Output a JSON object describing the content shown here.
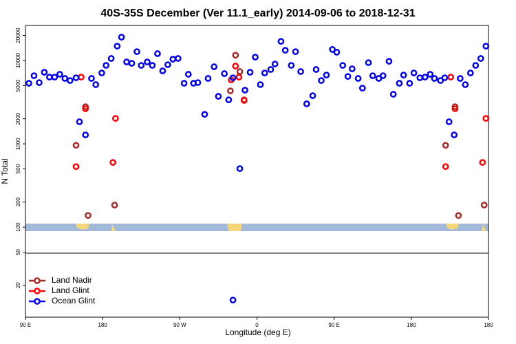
{
  "chart_data": {
    "type": "scatter",
    "title": "40S-35S December (Ver 11.1_early)   2014-09-06 to 2018-12-31",
    "x_label": "Longitude (deg E)",
    "y_label": "N Total",
    "log_y": true,
    "legend": "lower left",
    "xlim": [
      90,
      630
    ],
    "ylim": [
      8.3,
      26400
    ],
    "xticks": [
      {
        "value": 90,
        "label": "90 E"
      },
      {
        "value": 180,
        "label": "180"
      },
      {
        "value": 270,
        "label": "90 W"
      },
      {
        "value": 360,
        "label": "0"
      },
      {
        "value": 450,
        "label": "90 E"
      },
      {
        "value": 540,
        "label": "180"
      },
      {
        "value": 630,
        "label": "180"
      }
    ],
    "yticks": [
      20,
      50,
      100,
      200,
      500,
      1000,
      2000,
      5000,
      10000,
      20000
    ],
    "series": [
      {
        "name": "Land Nadir",
        "color": "#a52a2a",
        "x": [
          149,
          160,
          163,
          194,
          335,
          340,
          329,
          345,
          580,
          591,
          595,
          625
        ],
        "values": [
          961,
          2790,
          138,
          184,
          11600,
          7380,
          4330,
          3380,
          961,
          2790,
          138,
          184
        ]
      },
      {
        "name": "Land Glint",
        "color": "#ff0000",
        "x": [
          155,
          149,
          160,
          192,
          195,
          330,
          339,
          345,
          335,
          580,
          586,
          591,
          623,
          627
        ],
        "values": [
          6330,
          533,
          2640,
          598,
          2020,
          5870,
          6330,
          3320,
          8590,
          533,
          6330,
          2640,
          598,
          2020
        ]
      },
      {
        "name": "Ocean Glint",
        "color": "#0000ee",
        "x": [
          94,
          100,
          106,
          112,
          118,
          124,
          130,
          136,
          142,
          149,
          153,
          160,
          167,
          172,
          179,
          184,
          190,
          197,
          202,
          208,
          214,
          220,
          225,
          232,
          238,
          244,
          250,
          256,
          262,
          268,
          275,
          280,
          286,
          291,
          299,
          303,
          310,
          315,
          322,
          327,
          332,
          340,
          346,
          352,
          358,
          364,
          369,
          376,
          381,
          388,
          393,
          400,
          405,
          411,
          418,
          425,
          429,
          435,
          441,
          448,
          453,
          460,
          466,
          471,
          478,
          483,
          490,
          495,
          502,
          507,
          514,
          519,
          526,
          531,
          538,
          543,
          550,
          556,
          562,
          567,
          574,
          579,
          584,
          590,
          597,
          603,
          609,
          615,
          621,
          627,
          332
        ],
        "values": [
          5340,
          6580,
          5440,
          7240,
          6330,
          6330,
          6840,
          6100,
          5760,
          6210,
          1840,
          1280,
          6100,
          5140,
          7100,
          8750,
          10600,
          14900,
          19100,
          9620,
          9270,
          12800,
          8750,
          9620,
          8750,
          12100,
          7520,
          8920,
          10400,
          10600,
          5340,
          6840,
          5340,
          5440,
          2260,
          6100,
          8430,
          3720,
          6970,
          3380,
          6210,
          504,
          4410,
          7240,
          11000,
          5140,
          7100,
          7810,
          9100,
          17000,
          13300,
          8750,
          12800,
          7380,
          3020,
          3790,
          7810,
          5760,
          6700,
          13600,
          12600,
          8750,
          6450,
          7960,
          6100,
          4670,
          9440,
          6580,
          6100,
          6580,
          9800,
          3940,
          5340,
          6700,
          5340,
          7100,
          6210,
          6330,
          6840,
          6100,
          5760,
          6210,
          1840,
          1280,
          6100,
          5140,
          7100,
          8750,
          10600,
          14900,
          13.3
        ]
      }
    ]
  }
}
